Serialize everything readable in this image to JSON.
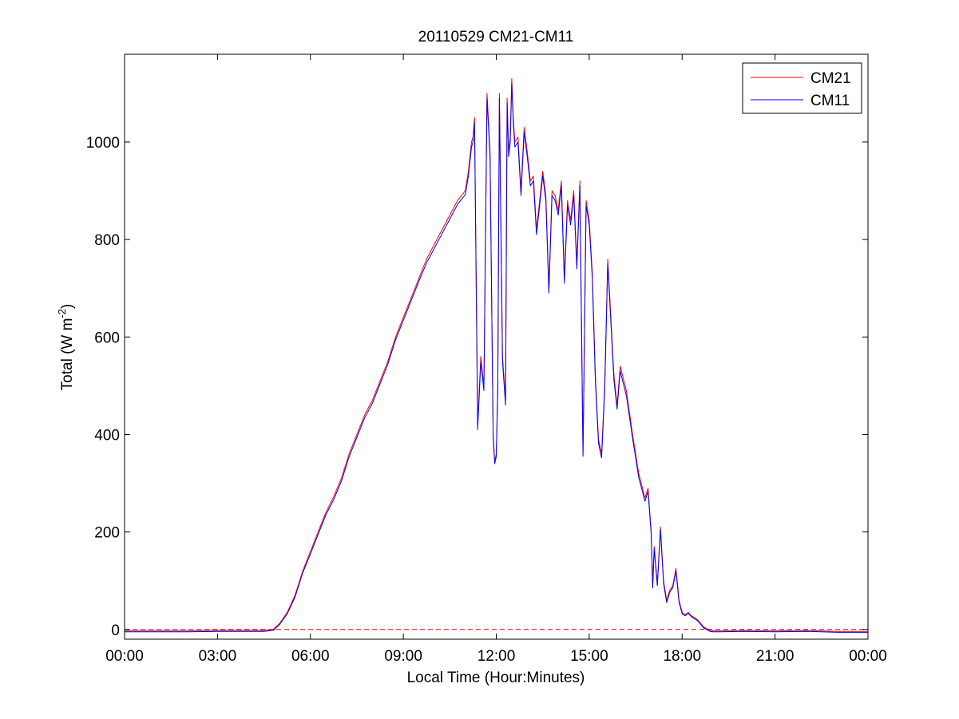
{
  "chart_data": {
    "type": "line",
    "title": "20110529 CM21-CM11",
    "xlabel": "Local Time (Hour:Minutes)",
    "ylabel": "Total (W m-2)",
    "ylabel_parts": {
      "main": "Total (W m",
      "sup": "-2",
      "close": ")"
    },
    "x_unit": "hours",
    "xlim": [
      0,
      24
    ],
    "ylim": [
      -20,
      1180
    ],
    "x_ticks": [
      0,
      3,
      6,
      9,
      12,
      15,
      18,
      21,
      24
    ],
    "x_tick_labels": [
      "00:00",
      "03:00",
      "06:00",
      "09:00",
      "12:00",
      "15:00",
      "18:00",
      "21:00",
      "00:00"
    ],
    "y_ticks": [
      0,
      200,
      400,
      600,
      800,
      1000
    ],
    "y_tick_labels": [
      "0",
      "200",
      "400",
      "600",
      "800",
      "1000"
    ],
    "grid": false,
    "legend_position": "top-right",
    "zero_reference_line": {
      "y": 0,
      "style": "dashed",
      "color": "#cc0000"
    },
    "x": [
      0,
      1,
      2,
      3,
      4,
      4.5,
      4.8,
      5.0,
      5.25,
      5.5,
      5.75,
      6.0,
      6.25,
      6.5,
      6.75,
      7.0,
      7.25,
      7.5,
      7.75,
      8.0,
      8.25,
      8.5,
      8.75,
      9.0,
      9.25,
      9.5,
      9.75,
      10.0,
      10.25,
      10.5,
      10.75,
      11.0,
      11.1,
      11.2,
      11.25,
      11.3,
      11.4,
      11.5,
      11.6,
      11.7,
      11.8,
      11.9,
      11.95,
      12.0,
      12.05,
      12.1,
      12.2,
      12.3,
      12.35,
      12.4,
      12.45,
      12.5,
      12.55,
      12.6,
      12.7,
      12.8,
      12.9,
      13.0,
      13.1,
      13.2,
      13.3,
      13.4,
      13.5,
      13.6,
      13.7,
      13.8,
      13.9,
      14.0,
      14.1,
      14.2,
      14.3,
      14.4,
      14.5,
      14.6,
      14.7,
      14.8,
      14.9,
      15.0,
      15.1,
      15.2,
      15.3,
      15.4,
      15.5,
      15.6,
      15.7,
      15.8,
      15.9,
      16.0,
      16.2,
      16.4,
      16.6,
      16.8,
      16.9,
      17.0,
      17.05,
      17.1,
      17.2,
      17.3,
      17.4,
      17.5,
      17.6,
      17.7,
      17.8,
      17.9,
      18.0,
      18.1,
      18.2,
      18.3,
      18.5,
      18.7,
      18.9,
      19.0,
      19.2,
      20,
      21,
      22,
      23,
      24
    ],
    "series": [
      {
        "name": "CM21",
        "color": "#ff0000",
        "values": [
          -3,
          -3,
          -3,
          -2,
          -2,
          -2,
          0,
          12,
          35,
          70,
          120,
          160,
          200,
          240,
          272,
          310,
          360,
          400,
          440,
          470,
          510,
          550,
          600,
          640,
          680,
          720,
          760,
          790,
          820,
          850,
          880,
          900,
          940,
          1000,
          1010,
          1050,
          420,
          560,
          500,
          1100,
          980,
          400,
          345,
          360,
          500,
          1100,
          560,
          470,
          1090,
          980,
          1010,
          1130,
          1050,
          1000,
          1010,
          900,
          1030,
          980,
          920,
          930,
          820,
          880,
          940,
          890,
          700,
          900,
          890,
          860,
          920,
          720,
          880,
          840,
          900,
          750,
          920,
          360,
          880,
          840,
          730,
          520,
          390,
          360,
          500,
          760,
          640,
          520,
          460,
          540,
          490,
          400,
          320,
          270,
          290,
          200,
          90,
          170,
          95,
          210,
          100,
          60,
          80,
          90,
          125,
          60,
          35,
          30,
          35,
          28,
          20,
          5,
          -2,
          -3,
          -3,
          -2,
          -3,
          -2,
          -4,
          -4
        ]
      },
      {
        "name": "CM11",
        "color": "#0000ff",
        "values": [
          -5,
          -5,
          -5,
          -4,
          -4,
          -4,
          -2,
          10,
          32,
          66,
          116,
          155,
          195,
          235,
          266,
          304,
          354,
          394,
          434,
          464,
          504,
          544,
          594,
          634,
          674,
          714,
          752,
          782,
          812,
          842,
          872,
          892,
          930,
          990,
          1000,
          1040,
          410,
          548,
          490,
          1090,
          970,
          395,
          340,
          355,
          490,
          1090,
          550,
          460,
          1080,
          970,
          1000,
          1120,
          1040,
          990,
          1000,
          890,
          1020,
          970,
          910,
          920,
          810,
          870,
          930,
          880,
          690,
          890,
          880,
          850,
          910,
          710,
          870,
          830,
          890,
          740,
          910,
          355,
          870,
          830,
          720,
          510,
          382,
          352,
          490,
          750,
          630,
          510,
          452,
          530,
          480,
          392,
          312,
          263,
          283,
          195,
          85,
          165,
          90,
          205,
          95,
          55,
          76,
          86,
          120,
          56,
          32,
          28,
          33,
          26,
          18,
          3,
          -4,
          -5,
          -5,
          -4,
          -5,
          -4,
          -6,
          -6
        ]
      }
    ]
  }
}
